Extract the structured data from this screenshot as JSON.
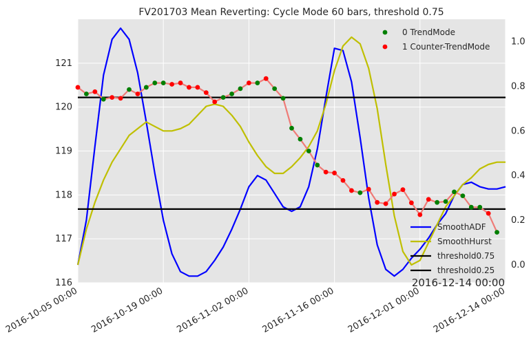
{
  "chart_data": {
    "type": "line",
    "title": "FV201703 Mean Reverting: Cycle Mode 60 bars, threshold 0.75",
    "corner_label": "2016-12-14 00:00",
    "x_ticks": [
      "2016-10-05 00:00",
      "2016-10-19 00:00",
      "2016-11-02 00:00",
      "2016-11-16 00:00",
      "2016-12-01 00:00",
      "2016-12-14 00:00"
    ],
    "x_tick_positions": [
      0,
      10,
      20,
      30,
      40,
      50
    ],
    "xlim": [
      0,
      50
    ],
    "left_axis": {
      "ylim": [
        116,
        122
      ],
      "ticks": [
        116,
        117,
        118,
        119,
        120,
        121
      ]
    },
    "right_axis": {
      "ylim": [
        -0.08,
        1.1
      ],
      "ticks": [
        0.0,
        0.2,
        0.4,
        0.6,
        0.8,
        1.0
      ]
    },
    "grid": true,
    "background": "#e5e5e5",
    "price": {
      "color": "#ef7b77",
      "values": [
        120.45,
        120.3,
        120.35,
        120.18,
        120.22,
        120.2,
        120.4,
        120.3,
        120.45,
        120.55,
        120.55,
        120.52,
        120.55,
        120.45,
        120.45,
        120.33,
        120.12,
        120.22,
        120.3,
        120.42,
        120.55,
        120.55,
        120.65,
        120.42,
        120.2,
        119.52,
        119.27,
        119.0,
        118.68,
        118.52,
        118.5,
        118.33,
        118.1,
        118.05,
        118.13,
        117.83,
        117.8,
        118.02,
        118.12,
        117.82,
        117.55,
        117.9,
        117.83,
        117.85,
        118.07,
        117.98,
        117.72,
        117.72,
        117.58,
        117.15
      ],
      "modes": [
        1,
        0,
        1,
        0,
        1,
        1,
        0,
        1,
        0,
        0,
        0,
        1,
        1,
        1,
        1,
        1,
        1,
        0,
        0,
        0,
        1,
        0,
        1,
        0,
        0,
        0,
        0,
        0,
        0,
        1,
        1,
        1,
        1,
        0,
        1,
        1,
        1,
        1,
        1,
        1,
        1,
        1,
        0,
        0,
        0,
        0,
        0,
        0,
        1,
        0
      ]
    },
    "series": [
      {
        "name": "SmoothADF",
        "axis": "right",
        "color": "#0000ff",
        "x": [
          0,
          1,
          2,
          3,
          4,
          5,
          6,
          7,
          8,
          9,
          10,
          11,
          12,
          13,
          14,
          15,
          16,
          17,
          18,
          19,
          20,
          21,
          22,
          23,
          24,
          25,
          26,
          27,
          28,
          29,
          30,
          31,
          32,
          33,
          34,
          35,
          36,
          37,
          38,
          39,
          40,
          41,
          42,
          43,
          44,
          45,
          46,
          47,
          48,
          49,
          50
        ],
        "values": [
          0.0,
          0.2,
          0.53,
          0.85,
          1.01,
          1.06,
          1.01,
          0.86,
          0.64,
          0.41,
          0.2,
          0.05,
          -0.03,
          -0.05,
          -0.05,
          -0.03,
          0.02,
          0.08,
          0.16,
          0.25,
          0.35,
          0.4,
          0.38,
          0.32,
          0.26,
          0.24,
          0.26,
          0.35,
          0.52,
          0.75,
          0.97,
          0.96,
          0.82,
          0.57,
          0.3,
          0.09,
          -0.02,
          -0.05,
          -0.02,
          0.03,
          0.07,
          0.12,
          0.18,
          0.23,
          0.31,
          0.36,
          0.37,
          0.35,
          0.34,
          0.34,
          0.35
        ]
      },
      {
        "name": "SmoothHurst",
        "axis": "right",
        "color": "#bfbf00",
        "x": [
          0,
          1,
          2,
          3,
          4,
          5,
          6,
          7,
          8,
          9,
          10,
          11,
          12,
          13,
          14,
          15,
          16,
          17,
          18,
          19,
          20,
          21,
          22,
          23,
          24,
          25,
          26,
          27,
          28,
          29,
          30,
          31,
          32,
          33,
          34,
          35,
          36,
          37,
          38,
          39,
          40,
          41,
          42,
          43,
          44,
          45,
          46,
          47,
          48,
          49,
          50
        ],
        "values": [
          0.0,
          0.16,
          0.28,
          0.38,
          0.46,
          0.52,
          0.58,
          0.61,
          0.64,
          0.62,
          0.6,
          0.6,
          0.61,
          0.63,
          0.67,
          0.71,
          0.72,
          0.71,
          0.67,
          0.62,
          0.55,
          0.49,
          0.44,
          0.41,
          0.41,
          0.44,
          0.48,
          0.53,
          0.6,
          0.72,
          0.87,
          0.98,
          1.02,
          0.99,
          0.88,
          0.7,
          0.45,
          0.22,
          0.06,
          0.0,
          0.02,
          0.1,
          0.18,
          0.26,
          0.31,
          0.36,
          0.39,
          0.43,
          0.45,
          0.46,
          0.46
        ]
      },
      {
        "name": "threshold0.75",
        "axis": "right",
        "color": "#000000",
        "x": [
          0,
          50
        ],
        "values": [
          0.75,
          0.75
        ]
      },
      {
        "name": "threshold0.25",
        "axis": "right",
        "color": "#000000",
        "x": [
          0,
          50
        ],
        "values": [
          0.25,
          0.25
        ]
      }
    ],
    "mode_legend": [
      {
        "label": "0 TrendMode",
        "color": "#007f00"
      },
      {
        "label": "1 Counter-TrendMode",
        "color": "#ff0000"
      }
    ]
  }
}
